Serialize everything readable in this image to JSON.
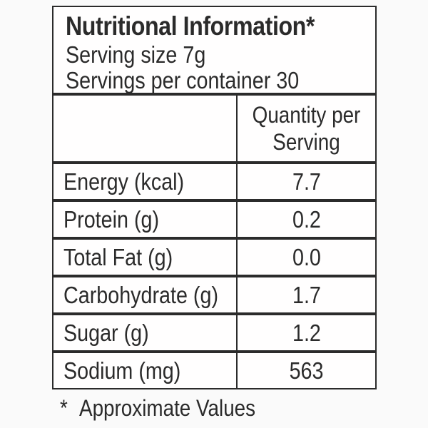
{
  "table": {
    "title": "Nutritional Information*",
    "serving_size": "Serving size 7g",
    "servings_per_container": "Servings per container 30",
    "quantity_header": "Quantity per Serving",
    "rows": [
      {
        "label": "Energy (kcal)",
        "value": "7.7"
      },
      {
        "label": "Protein (g)",
        "value": "0.2"
      },
      {
        "label": "Total Fat (g)",
        "value": "0.0"
      },
      {
        "label": "Carbohydrate (g)",
        "value": "1.7"
      },
      {
        "label": "Sugar (g)",
        "value": "1.2"
      },
      {
        "label": "Sodium (mg)",
        "value": "563"
      }
    ],
    "footnote_marker": "*",
    "footnote_text": "Approximate Values"
  },
  "colors": {
    "text": "#2b2b2b",
    "border": "#2b2b2b",
    "table_background": "#ffffff",
    "page_background": "#fafafa"
  }
}
